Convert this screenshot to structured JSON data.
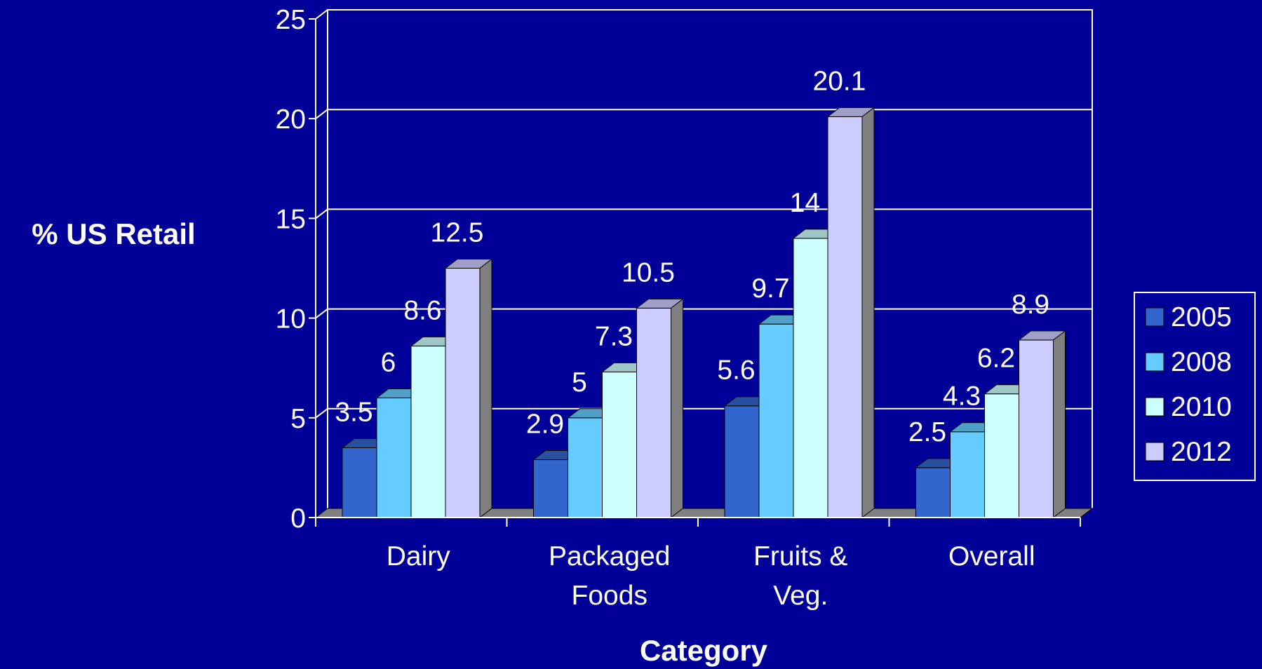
{
  "chart_data": {
    "type": "bar",
    "title": "",
    "xlabel": "Category",
    "ylabel": "% US Retail",
    "categories": [
      [
        "Dairy"
      ],
      [
        "Packaged",
        "Foods"
      ],
      [
        "Fruits &",
        "Veg."
      ],
      [
        "Overall"
      ]
    ],
    "series": [
      {
        "name": "2005",
        "values": [
          3.5,
          2.9,
          5.6,
          2.5
        ]
      },
      {
        "name": "2008",
        "values": [
          6,
          5,
          9.7,
          4.3
        ]
      },
      {
        "name": "2010",
        "values": [
          8.6,
          7.3,
          14,
          6.2
        ]
      },
      {
        "name": "2012",
        "values": [
          12.5,
          10.5,
          20.1,
          8.9
        ]
      }
    ],
    "ylim": [
      0,
      25
    ],
    "yticks": [
      0,
      5,
      10,
      15,
      20,
      25
    ],
    "grid": true,
    "legend": "right",
    "three_d": true,
    "colors": {
      "background": "#000099",
      "gridline": "#FFFFFF",
      "text": "#FFFFFF",
      "floor": "#808080",
      "series": [
        "#3366CC",
        "#66CCFF",
        "#CCFFFF",
        "#CCCCFF"
      ]
    }
  }
}
